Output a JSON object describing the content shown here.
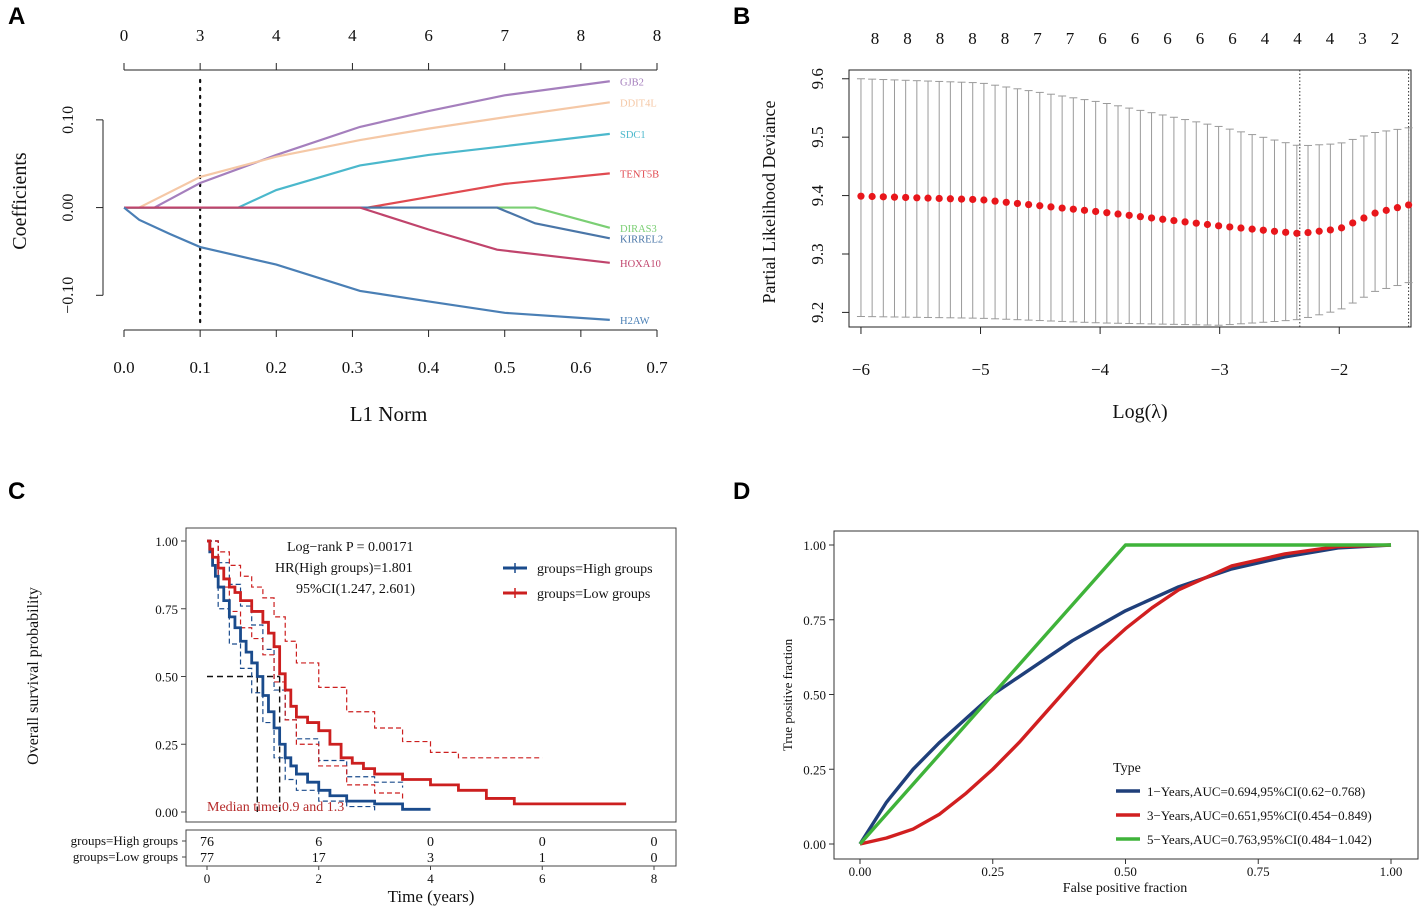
{
  "panels": {
    "A": "A",
    "B": "B",
    "C": "C",
    "D": "D"
  },
  "chart_data": [
    {
      "id": "A",
      "type": "line",
      "title": "",
      "xlabel": "L1 Norm",
      "ylabel": "Coefficients",
      "xlim": [
        0,
        0.7
      ],
      "ylim": [
        -0.135,
        0.15
      ],
      "x_ticks": [
        "0.0",
        "0.1",
        "0.2",
        "0.3",
        "0.4",
        "0.5",
        "0.6",
        "0.7"
      ],
      "x_tick_values": [
        0,
        0.1,
        0.2,
        0.3,
        0.4,
        0.5,
        0.6,
        0.7
      ],
      "y_ticks": [
        "−0.10",
        "0.00",
        "0.10"
      ],
      "y_tick_values": [
        -0.1,
        0,
        0.1
      ],
      "top_ticks": [
        "0",
        "3",
        "4",
        "4",
        "6",
        "7",
        "8",
        "8"
      ],
      "cutoff_x": 0.1,
      "series": [
        {
          "name": "GJB2",
          "color": "#a57fbd",
          "x": [
            0,
            0.04,
            0.1,
            0.2,
            0.31,
            0.4,
            0.5,
            0.638
          ],
          "y": [
            0,
            0,
            0.028,
            0.06,
            0.092,
            0.11,
            0.128,
            0.144
          ]
        },
        {
          "name": "DDIT4L",
          "color": "#f5c8a6",
          "x": [
            0,
            0.02,
            0.1,
            0.2,
            0.31,
            0.4,
            0.5,
            0.638
          ],
          "y": [
            0,
            0,
            0.035,
            0.058,
            0.077,
            0.09,
            0.103,
            0.12
          ]
        },
        {
          "name": "SDC1",
          "color": "#4bb8cc",
          "x": [
            0,
            0.15,
            0.2,
            0.31,
            0.4,
            0.5,
            0.638
          ],
          "y": [
            0,
            0,
            0.02,
            0.048,
            0.06,
            0.07,
            0.084
          ]
        },
        {
          "name": "TENT5B",
          "color": "#e04a50",
          "x": [
            0,
            0.32,
            0.4,
            0.5,
            0.638
          ],
          "y": [
            0,
            0,
            0.012,
            0.027,
            0.039
          ]
        },
        {
          "name": "DIRAS3",
          "color": "#7bcf74",
          "x": [
            0,
            0.54,
            0.638
          ],
          "y": [
            0,
            0,
            -0.023
          ]
        },
        {
          "name": "KIRREL2",
          "color": "#4a76a8",
          "x": [
            0,
            0.49,
            0.54,
            0.638
          ],
          "y": [
            0,
            0,
            -0.018,
            -0.035
          ]
        },
        {
          "name": "HOXA10",
          "color": "#c0446c",
          "x": [
            0,
            0.31,
            0.4,
            0.49,
            0.638
          ],
          "y": [
            0,
            0,
            -0.025,
            -0.048,
            -0.063
          ]
        },
        {
          "name": "H2AW",
          "color": "#4a7fb5",
          "x": [
            0,
            0.02,
            0.06,
            0.1,
            0.2,
            0.31,
            0.4,
            0.5,
            0.638
          ],
          "y": [
            0,
            -0.014,
            -0.03,
            -0.045,
            -0.065,
            -0.095,
            -0.107,
            -0.12,
            -0.128
          ]
        }
      ]
    },
    {
      "id": "B",
      "type": "scatter",
      "title": "",
      "xlabel": "Log(λ)",
      "ylabel": "Partial Likelihood Deviance",
      "xlim": [
        -6.1,
        -1.4
      ],
      "ylim": [
        9.175,
        9.615
      ],
      "x_ticks": [
        "−6",
        "−5",
        "−4",
        "−3",
        "−2"
      ],
      "x_tick_values": [
        -6,
        -5,
        -4,
        -3,
        -2
      ],
      "y_ticks": [
        "9.2",
        "9.3",
        "9.4",
        "9.5",
        "9.6"
      ],
      "y_tick_values": [
        9.2,
        9.3,
        9.4,
        9.5,
        9.6
      ],
      "top_ticks": [
        "8",
        "8",
        "8",
        "8",
        "8",
        "7",
        "7",
        "6",
        "6",
        "6",
        "6",
        "6",
        "4",
        "4",
        "4",
        "3",
        "2"
      ],
      "lambda_min": -2.33,
      "lambda_1se": -1.42,
      "points_color": "#e8161b",
      "x_start": -6.0,
      "x_end": -1.42,
      "n_points": 50,
      "mean_anchor_x": [
        -6.0,
        -5.0,
        -4.0,
        -3.0,
        -2.5,
        -2.33,
        -2.0,
        -1.7,
        -1.42
      ],
      "mean_anchor_y": [
        9.399,
        9.393,
        9.372,
        9.348,
        9.338,
        9.335,
        9.343,
        9.37,
        9.384
      ],
      "upper_anchor_x": [
        -6.0,
        -5.0,
        -4.0,
        -3.0,
        -2.5,
        -2.33,
        -2.0,
        -1.7,
        -1.42
      ],
      "upper_anchor_y": [
        9.6,
        9.593,
        9.56,
        9.518,
        9.493,
        9.485,
        9.489,
        9.508,
        9.516
      ],
      "lower_anchor_x": [
        -6.0,
        -5.0,
        -4.0,
        -3.0,
        -2.5,
        -2.33,
        -2.0,
        -1.7,
        -1.42
      ],
      "lower_anchor_y": [
        9.193,
        9.19,
        9.182,
        9.178,
        9.185,
        9.188,
        9.204,
        9.236,
        9.251
      ]
    },
    {
      "id": "C",
      "type": "line",
      "title": "",
      "xlabel": "Time (years)",
      "ylabel": "Overall survival probability",
      "xlim": [
        0,
        8
      ],
      "ylim": [
        0,
        1
      ],
      "x_ticks": [
        "0",
        "2",
        "4",
        "6",
        "8"
      ],
      "x_tick_values": [
        0,
        2,
        4,
        6,
        8
      ],
      "y_ticks": [
        "0.00",
        "0.25",
        "0.50",
        "0.75",
        "1.00"
      ],
      "y_tick_values": [
        0,
        0.25,
        0.5,
        0.75,
        1
      ],
      "annotations": {
        "logrank": "Log−rank P = 0.00171",
        "hr": "HR(High groups)=1.801",
        "ci": "95%CI(1.247, 2.601)",
        "median": "Median time:0.9 and 1.3"
      },
      "median_times": [
        0.9,
        1.3
      ],
      "legend": [
        "groups=High groups",
        "groups=Low groups"
      ],
      "series": [
        {
          "name": "groups=High groups",
          "color": "#1a4b8c",
          "x": [
            0,
            0.05,
            0.1,
            0.15,
            0.2,
            0.3,
            0.4,
            0.5,
            0.6,
            0.7,
            0.8,
            0.9,
            1.0,
            1.1,
            1.2,
            1.3,
            1.4,
            1.5,
            1.6,
            1.8,
            2.0,
            2.2,
            2.5,
            3.0,
            3.5,
            4.0
          ],
          "y": [
            1.0,
            0.96,
            0.91,
            0.87,
            0.83,
            0.78,
            0.72,
            0.68,
            0.63,
            0.59,
            0.55,
            0.5,
            0.43,
            0.37,
            0.31,
            0.25,
            0.2,
            0.17,
            0.14,
            0.11,
            0.08,
            0.06,
            0.04,
            0.03,
            0.01,
            0.01
          ]
        },
        {
          "name": "groups=Low groups",
          "color": "#cc1f1f",
          "x": [
            0,
            0.05,
            0.1,
            0.2,
            0.3,
            0.4,
            0.5,
            0.6,
            0.8,
            1.0,
            1.1,
            1.2,
            1.3,
            1.4,
            1.5,
            1.6,
            1.8,
            2.0,
            2.2,
            2.4,
            2.6,
            2.8,
            3.0,
            3.5,
            4.0,
            4.5,
            5.0,
            5.5,
            6.0,
            7.0,
            7.5
          ],
          "y": [
            1.0,
            0.97,
            0.94,
            0.9,
            0.86,
            0.83,
            0.81,
            0.78,
            0.74,
            0.7,
            0.66,
            0.61,
            0.51,
            0.45,
            0.39,
            0.35,
            0.33,
            0.3,
            0.25,
            0.2,
            0.18,
            0.16,
            0.14,
            0.12,
            0.1,
            0.08,
            0.05,
            0.03,
            0.03,
            0.03,
            0.03
          ]
        },
        {
          "name": "High upper CI",
          "color": "#1a4b8c",
          "dashed": true,
          "x": [
            0,
            0.2,
            0.4,
            0.6,
            0.8,
            1.0,
            1.2,
            1.4,
            1.6,
            2.0,
            2.5,
            3.0,
            3.5
          ],
          "y": [
            1.0,
            0.92,
            0.84,
            0.76,
            0.69,
            0.6,
            0.45,
            0.34,
            0.27,
            0.19,
            0.13,
            0.11,
            0.09
          ]
        },
        {
          "name": "High lower CI",
          "color": "#1a4b8c",
          "dashed": true,
          "x": [
            0,
            0.2,
            0.4,
            0.6,
            0.8,
            1.0,
            1.2,
            1.4,
            1.6,
            2.0,
            2.5,
            3.0
          ],
          "y": [
            1.0,
            0.75,
            0.62,
            0.53,
            0.44,
            0.33,
            0.2,
            0.12,
            0.08,
            0.04,
            0.02,
            0.0
          ]
        },
        {
          "name": "Low upper CI",
          "color": "#cc1f1f",
          "dashed": true,
          "x": [
            0,
            0.2,
            0.4,
            0.6,
            0.8,
            1.0,
            1.2,
            1.4,
            1.6,
            2.0,
            2.5,
            3.0,
            3.5,
            4.0,
            4.5,
            6.0
          ],
          "y": [
            1.0,
            0.96,
            0.91,
            0.87,
            0.83,
            0.79,
            0.72,
            0.63,
            0.55,
            0.46,
            0.37,
            0.31,
            0.26,
            0.22,
            0.2,
            0.2
          ]
        },
        {
          "name": "Low lower CI",
          "color": "#cc1f1f",
          "dashed": true,
          "x": [
            0,
            0.2,
            0.4,
            0.6,
            0.8,
            1.0,
            1.2,
            1.4,
            1.6,
            2.0,
            2.5,
            3.0,
            3.5
          ],
          "y": [
            1.0,
            0.83,
            0.74,
            0.68,
            0.64,
            0.58,
            0.48,
            0.34,
            0.25,
            0.17,
            0.1,
            0.07,
            0.05
          ]
        }
      ],
      "risk_table": {
        "labels": [
          "groups=High groups",
          "groups=Low groups"
        ],
        "times": [
          0,
          2,
          4,
          6,
          8
        ],
        "values": [
          [
            "76",
            "6",
            "0",
            "0",
            "0"
          ],
          [
            "77",
            "17",
            "3",
            "1",
            "0"
          ]
        ],
        "colors": [
          "#111111",
          "#111111"
        ]
      }
    },
    {
      "id": "D",
      "type": "line",
      "title": "",
      "xlabel": "False positive fraction",
      "ylabel": "True positive fraction",
      "xlim": [
        0,
        1
      ],
      "ylim": [
        0,
        1
      ],
      "x_ticks": [
        "0.00",
        "0.25",
        "0.50",
        "0.75",
        "1.00"
      ],
      "x_tick_values": [
        0,
        0.25,
        0.5,
        0.75,
        1
      ],
      "y_ticks": [
        "0.00",
        "0.25",
        "0.50",
        "0.75",
        "1.00"
      ],
      "y_tick_values": [
        0,
        0.25,
        0.5,
        0.75,
        1
      ],
      "legend_title": "Type",
      "series": [
        {
          "name": "1−Years,AUC=0.694,95%CI(0.62−0.768)",
          "color": "#1f3f7a",
          "x": [
            0,
            0.05,
            0.1,
            0.15,
            0.2,
            0.25,
            0.3,
            0.4,
            0.5,
            0.6,
            0.7,
            0.8,
            0.9,
            1.0
          ],
          "y": [
            0,
            0.14,
            0.25,
            0.34,
            0.42,
            0.5,
            0.56,
            0.68,
            0.78,
            0.86,
            0.92,
            0.96,
            0.99,
            1.0
          ]
        },
        {
          "name": "3−Years,AUC=0.651,95%CI(0.454−0.849)",
          "color": "#d11f20",
          "x": [
            0,
            0.05,
            0.1,
            0.15,
            0.2,
            0.25,
            0.3,
            0.35,
            0.4,
            0.45,
            0.5,
            0.55,
            0.6,
            0.7,
            0.8,
            0.9,
            1.0
          ],
          "y": [
            0,
            0.02,
            0.05,
            0.1,
            0.17,
            0.25,
            0.34,
            0.44,
            0.54,
            0.64,
            0.72,
            0.79,
            0.85,
            0.93,
            0.97,
            0.995,
            1.0
          ]
        },
        {
          "name": "5−Years,AUC=0.763,95%CI(0.484−1.042)",
          "color": "#3fb33a",
          "x": [
            0,
            0.5,
            1.0
          ],
          "y": [
            0,
            1.0,
            1.0
          ]
        }
      ]
    }
  ]
}
